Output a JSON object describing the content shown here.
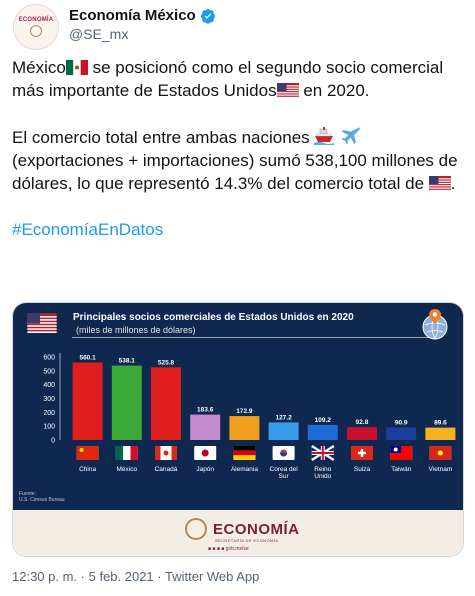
{
  "account": {
    "display_name": "Economía México",
    "handle": "@SE_mx",
    "avatar_text": "ECONOMÍA"
  },
  "tweet": {
    "p1_a": "México",
    "p1_b": " se posicionó como el segundo socio comercial más importante de Estados Unidos",
    "p1_c": " en 2020.",
    "p2_a": "El comercio total entre ambas naciones",
    "p2_b": " (exportaciones + importaciones) sumó 538,100 millones de dólares, lo que representó 14.3% del comercio total de ",
    "p2_c": ".",
    "hashtag": "#EconomíaEnDatos"
  },
  "infographic": {
    "title": "Principales socios comerciales de Estados Unidos en 2020",
    "subtitle": "(miles de millones de dólares)",
    "source": "Fuente:\nU.S. Census Bureau",
    "logo_text": "ECONOMÍA",
    "logo_sub": "SECRETARÍA DE ECONOMÍA",
    "social": "gob.mx/se"
  },
  "chart_data": {
    "type": "bar",
    "title": "Principales socios comerciales de Estados Unidos en 2020",
    "subtitle": "(miles de millones de dólares)",
    "categories": [
      "China",
      "México",
      "Canadá",
      "Japón",
      "Alemania",
      "Corea del Sur",
      "Reino Unido",
      "Suiza",
      "Taiwán",
      "Vietnam"
    ],
    "values": [
      560.1,
      538.1,
      525.8,
      183.6,
      172.9,
      127.2,
      109.2,
      92.8,
      90.9,
      89.6
    ],
    "value_labels": [
      "560.1",
      "538.1",
      "525.8",
      "183.6",
      "172.9",
      "127.2",
      "109.2",
      "92.8",
      "90.9",
      "89.6"
    ],
    "colors": [
      "#e01e1e",
      "#3aa935",
      "#e01e1e",
      "#c58bd0",
      "#f0a020",
      "#3a9be8",
      "#1e6ad8",
      "#c8102e",
      "#1a3fa0",
      "#f5b324"
    ],
    "yticks": [
      0,
      100,
      200,
      300,
      400,
      500,
      600
    ],
    "ylim": [
      0,
      600
    ],
    "grid": false,
    "legend": "none"
  },
  "meta": {
    "time": "12:30 p. m.",
    "date": "5 feb. 2021",
    "source": "Twitter Web App",
    "sep": " · "
  },
  "colors": {
    "hashtag": "#1d9bf0",
    "infographic_bg": "#0f2850",
    "footer_bg": "#f3ede6",
    "brand": "#7a1e3a"
  }
}
